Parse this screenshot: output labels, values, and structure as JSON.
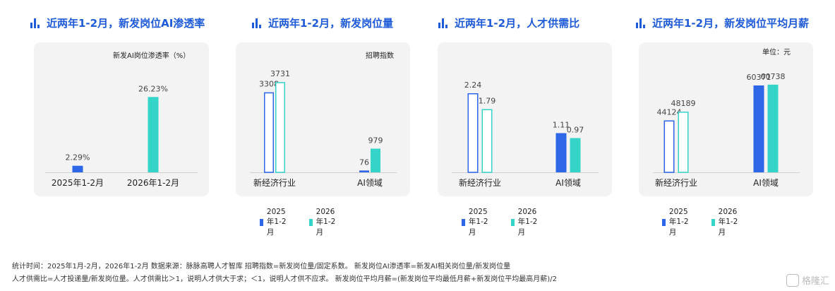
{
  "colors": {
    "c2025": "#2d66e6",
    "c2026": "#35d4c8",
    "title": "#1e5bd8"
  },
  "legend": {
    "y2025": "2025年1-2月",
    "y2026": "2026年1-2月"
  },
  "footer": {
    "line1": "统计时间：2025年1月-2月，2026年1-2月     数据来源：脉脉高聘人才智库     招聘指数=新发岗位量/固定系数。    新发岗位AI渗透率=新发AI相关岗位量/新发岗位量",
    "line2": "人才供需比=人才投递量/新发岗位量。人才供需比＞1，说明人才供大于求；＜1，说明人才供不应求。    新发岗位平均月薪=(新发岗位平均最低月薪+新发岗位平均最高月薪)/2"
  },
  "watermark": "格隆汇",
  "chart_data": [
    {
      "type": "bar",
      "title": "近两年1-2月，新发岗位AI渗透率",
      "unit_label": "新发AI岗位渗透率（%）",
      "categories": [
        "2025年1-2月",
        "2026年1-2月"
      ],
      "series": [
        {
          "name": "2025年1-2月",
          "values": [
            2.29,
            null
          ],
          "labels": [
            "2.29%",
            ""
          ]
        },
        {
          "name": "2026年1-2月",
          "values": [
            null,
            26.23
          ],
          "labels": [
            "",
            "26.23%"
          ]
        }
      ],
      "ylim": [
        0,
        30
      ]
    },
    {
      "type": "bar",
      "title": "近两年1-2月，新发岗位量",
      "unit_label": "招聘指数",
      "categories": [
        "新经济行业",
        "AI领域"
      ],
      "series": [
        {
          "name": "2025年1-2月",
          "values": [
            3308,
            76
          ],
          "labels": [
            "3308",
            "76"
          ]
        },
        {
          "name": "2026年1-2月",
          "values": [
            3731,
            979
          ],
          "labels": [
            "3731",
            "979"
          ]
        }
      ],
      "ylim": [
        0,
        4000
      ]
    },
    {
      "type": "bar",
      "title": "近两年1-2月，人才供需比",
      "unit_label": "",
      "categories": [
        "新经济行业",
        "AI领域"
      ],
      "series": [
        {
          "name": "2025年1-2月",
          "values": [
            2.24,
            1.11
          ],
          "labels": [
            "2.24",
            "1.11"
          ]
        },
        {
          "name": "2026年1-2月",
          "values": [
            1.79,
            0.97
          ],
          "labels": [
            "1.79",
            "0.97"
          ]
        }
      ],
      "ylim": [
        0,
        2.4
      ]
    },
    {
      "type": "bar",
      "title": "近两年1-2月，新发岗位平均月薪",
      "unit_label": "单位：元",
      "categories": [
        "新经济行业",
        "AI领域"
      ],
      "series": [
        {
          "name": "2025年1-2月",
          "values": [
            44124,
            60371
          ],
          "labels": [
            "44124",
            "60371"
          ]
        },
        {
          "name": "2026年1-2月",
          "values": [
            48189,
            60738
          ],
          "labels": [
            "48189",
            "60738"
          ]
        }
      ],
      "ylim": [
        20000,
        62000
      ]
    }
  ]
}
